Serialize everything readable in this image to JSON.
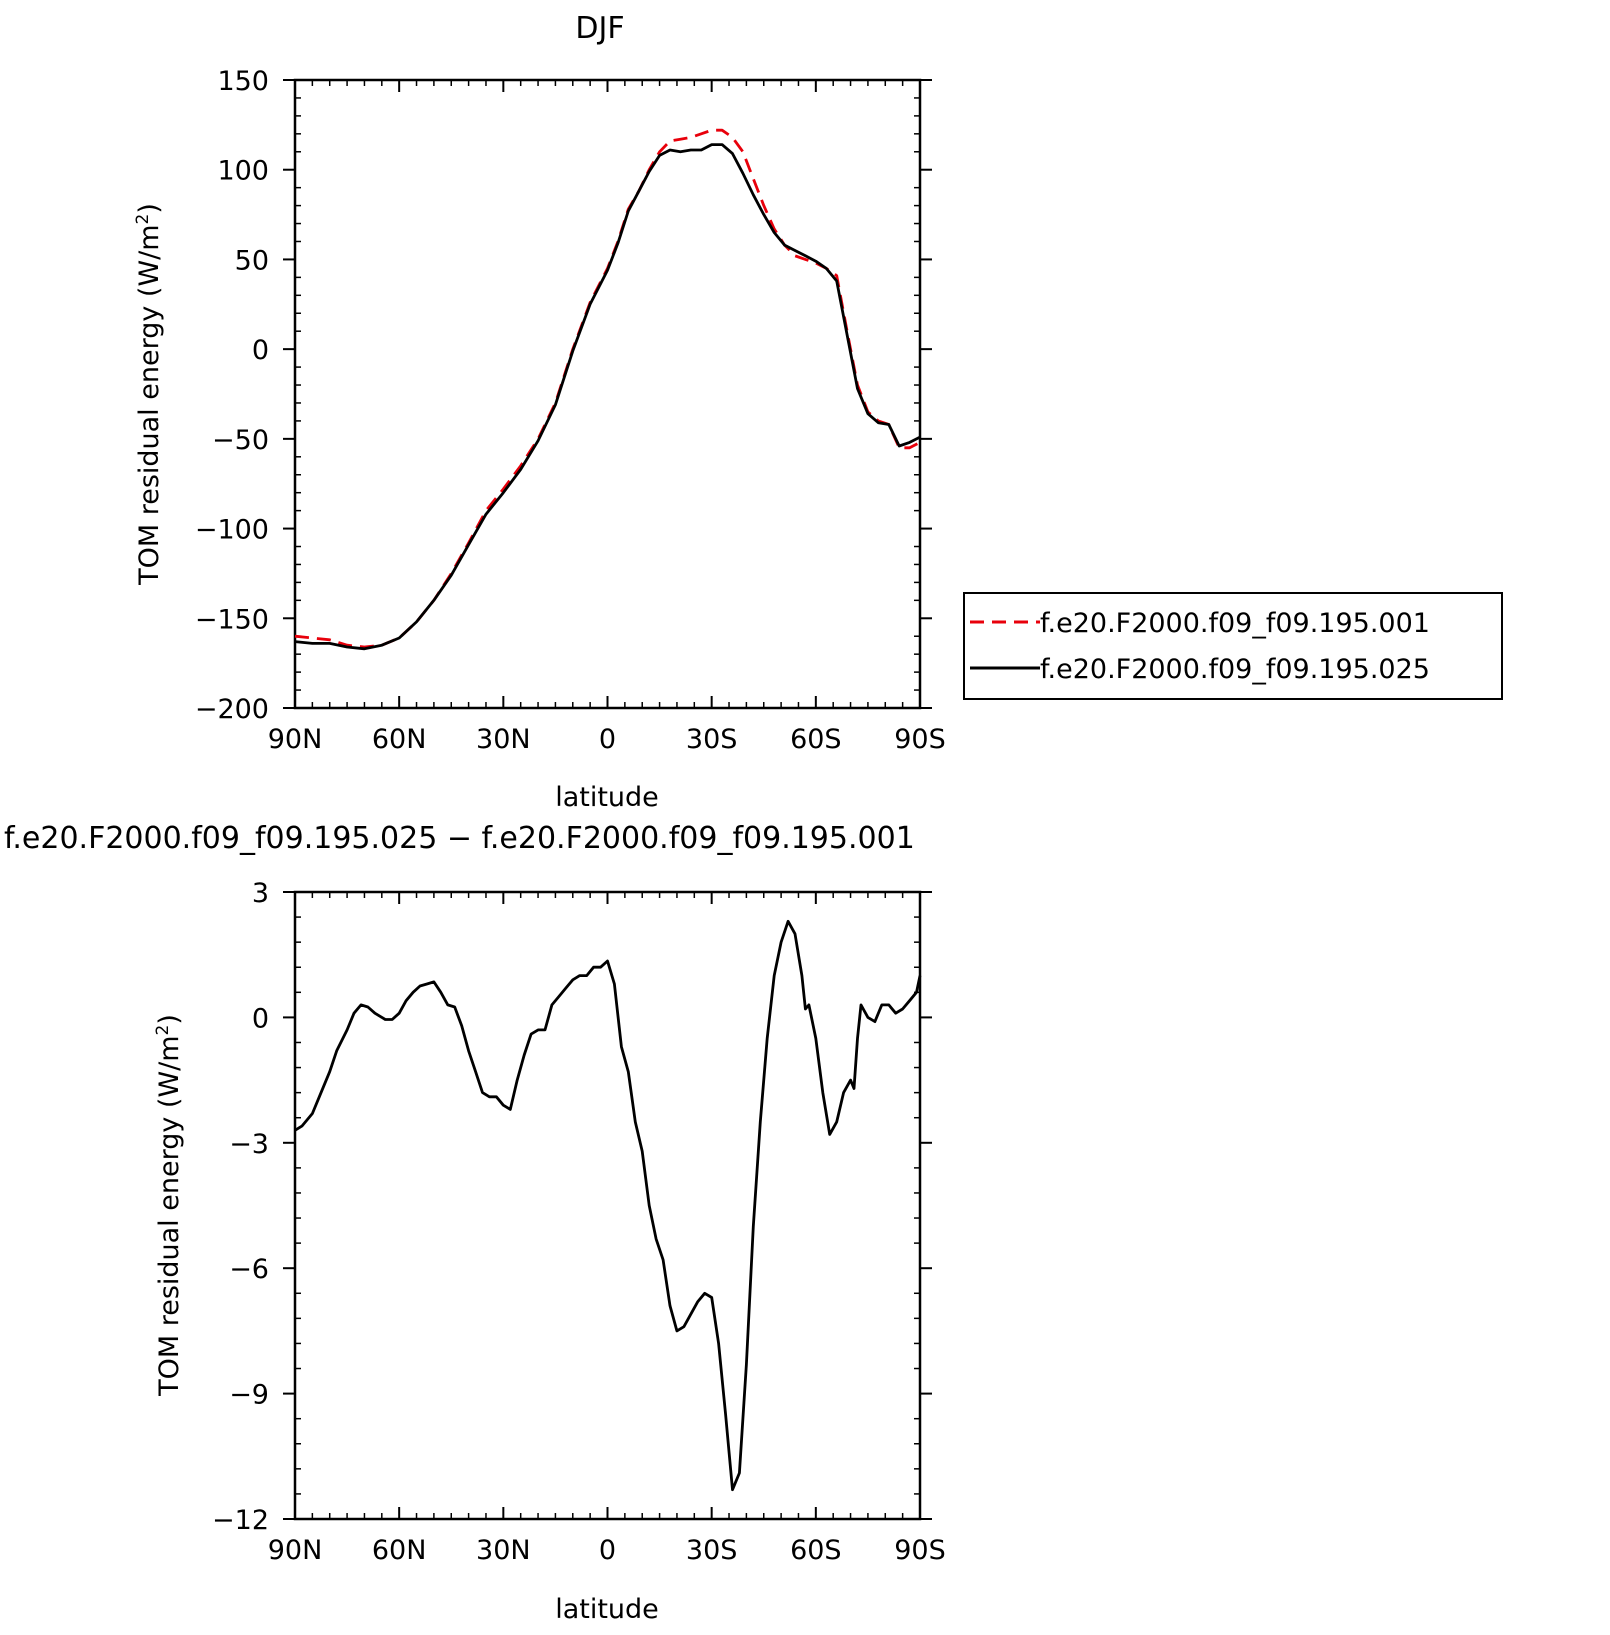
{
  "chart_data": [
    {
      "type": "line",
      "title": "DJF",
      "xlabel": "latitude",
      "ylabel": "TOM residual energy (W/m²)",
      "ylabel_prefix": "TOM residual energy (W/m",
      "ylabel_sup": "2",
      "ylabel_suffix": ")",
      "xlim": [
        -90,
        90
      ],
      "ylim": [
        -200,
        150
      ],
      "xticks": [
        {
          "value": -90,
          "label": "90N"
        },
        {
          "value": -60,
          "label": "60N"
        },
        {
          "value": -30,
          "label": "30N"
        },
        {
          "value": 0,
          "label": "0"
        },
        {
          "value": 30,
          "label": "30S"
        },
        {
          "value": 60,
          "label": "60S"
        },
        {
          "value": 90,
          "label": "90S"
        }
      ],
      "yticks": [
        {
          "value": 150,
          "label": "150"
        },
        {
          "value": 100,
          "label": "100"
        },
        {
          "value": 50,
          "label": "50"
        },
        {
          "value": 0,
          "label": "0"
        },
        {
          "value": -50,
          "label": "−50"
        },
        {
          "value": -100,
          "label": "−100"
        },
        {
          "value": -150,
          "label": "−150"
        },
        {
          "value": -200,
          "label": "−200"
        }
      ],
      "legend_position": "right",
      "series": [
        {
          "name": "f.e20.F2000.f09_f09.195.001",
          "color": "#e8000b",
          "dash": "dashed",
          "points": [
            [
              -90,
              -160
            ],
            [
              -85,
              -161
            ],
            [
              -80,
              -162
            ],
            [
              -75,
              -165
            ],
            [
              -70,
              -166
            ],
            [
              -65,
              -165
            ],
            [
              -60,
              -161
            ],
            [
              -55,
              -152
            ],
            [
              -50,
              -140
            ],
            [
              -45,
              -125
            ],
            [
              -40,
              -108
            ],
            [
              -35,
              -90
            ],
            [
              -30,
              -78
            ],
            [
              -25,
              -65
            ],
            [
              -20,
              -50
            ],
            [
              -15,
              -30
            ],
            [
              -10,
              0
            ],
            [
              -5,
              26
            ],
            [
              0,
              45
            ],
            [
              3,
              60
            ],
            [
              6,
              78
            ],
            [
              9,
              88
            ],
            [
              12,
              100
            ],
            [
              15,
              110
            ],
            [
              18,
              116
            ],
            [
              21,
              117
            ],
            [
              24,
              118
            ],
            [
              27,
              120
            ],
            [
              30,
              122
            ],
            [
              33,
              122
            ],
            [
              36,
              118
            ],
            [
              39,
              110
            ],
            [
              42,
              95
            ],
            [
              45,
              80
            ],
            [
              48,
              67
            ],
            [
              51,
              58
            ],
            [
              54,
              52
            ],
            [
              57,
              50
            ],
            [
              60,
              48
            ],
            [
              63,
              45
            ],
            [
              66,
              41
            ],
            [
              69,
              10
            ],
            [
              72,
              -20
            ],
            [
              75,
              -35
            ],
            [
              78,
              -40
            ],
            [
              81,
              -42
            ],
            [
              84,
              -55
            ],
            [
              87,
              -55
            ],
            [
              90,
              -52
            ]
          ]
        },
        {
          "name": "f.e20.F2000.f09_f09.195.025",
          "color": "#000000",
          "dash": "solid",
          "points": [
            [
              -90,
              -163
            ],
            [
              -85,
              -164
            ],
            [
              -80,
              -164
            ],
            [
              -75,
              -166
            ],
            [
              -70,
              -167
            ],
            [
              -65,
              -165
            ],
            [
              -60,
              -161
            ],
            [
              -55,
              -152
            ],
            [
              -50,
              -140
            ],
            [
              -45,
              -126
            ],
            [
              -40,
              -109
            ],
            [
              -35,
              -92
            ],
            [
              -30,
              -80
            ],
            [
              -25,
              -67
            ],
            [
              -20,
              -51
            ],
            [
              -15,
              -31
            ],
            [
              -10,
              -1
            ],
            [
              -5,
              25
            ],
            [
              0,
              44
            ],
            [
              3,
              59
            ],
            [
              6,
              77
            ],
            [
              9,
              88
            ],
            [
              12,
              99
            ],
            [
              15,
              108
            ],
            [
              18,
              111
            ],
            [
              21,
              110
            ],
            [
              24,
              111
            ],
            [
              27,
              111
            ],
            [
              30,
              114
            ],
            [
              33,
              114
            ],
            [
              36,
              109
            ],
            [
              39,
              98
            ],
            [
              42,
              86
            ],
            [
              45,
              75
            ],
            [
              48,
              65
            ],
            [
              51,
              58
            ],
            [
              54,
              55
            ],
            [
              57,
              52
            ],
            [
              60,
              49
            ],
            [
              63,
              45
            ],
            [
              66,
              38
            ],
            [
              69,
              8
            ],
            [
              72,
              -22
            ],
            [
              75,
              -36
            ],
            [
              78,
              -41
            ],
            [
              81,
              -42
            ],
            [
              84,
              -54
            ],
            [
              87,
              -52
            ],
            [
              90,
              -49
            ]
          ]
        }
      ]
    },
    {
      "type": "line",
      "title": "f.e20.F2000.f09_f09.195.025 − f.e20.F2000.f09_f09.195.001",
      "xlabel": "latitude",
      "ylabel": "TOM residual energy (W/m²)",
      "ylabel_prefix": "TOM residual energy (W/m",
      "ylabel_sup": "2",
      "ylabel_suffix": ")",
      "xlim": [
        -90,
        90
      ],
      "ylim": [
        -12,
        3
      ],
      "xticks": [
        {
          "value": -90,
          "label": "90N"
        },
        {
          "value": -60,
          "label": "60N"
        },
        {
          "value": -30,
          "label": "30N"
        },
        {
          "value": 0,
          "label": "0"
        },
        {
          "value": 30,
          "label": "30S"
        },
        {
          "value": 60,
          "label": "60S"
        },
        {
          "value": 90,
          "label": "90S"
        }
      ],
      "yticks": [
        {
          "value": 3,
          "label": "3"
        },
        {
          "value": 0,
          "label": "0"
        },
        {
          "value": -3,
          "label": "−3"
        },
        {
          "value": -6,
          "label": "−6"
        },
        {
          "value": -9,
          "label": "−9"
        },
        {
          "value": -12,
          "label": "−12"
        }
      ],
      "series": [
        {
          "name": "",
          "color": "#000000",
          "dash": "solid",
          "points": [
            [
              -90,
              -2.7
            ],
            [
              -88,
              -2.6
            ],
            [
              -85,
              -2.3
            ],
            [
              -83,
              -1.9
            ],
            [
              -80,
              -1.3
            ],
            [
              -78,
              -0.8
            ],
            [
              -75,
              -0.3
            ],
            [
              -73,
              0.1
            ],
            [
              -71,
              0.3
            ],
            [
              -69,
              0.25
            ],
            [
              -67,
              0.1
            ],
            [
              -64,
              -0.05
            ],
            [
              -62,
              -0.05
            ],
            [
              -60,
              0.1
            ],
            [
              -58,
              0.4
            ],
            [
              -56,
              0.6
            ],
            [
              -54,
              0.75
            ],
            [
              -52,
              0.8
            ],
            [
              -50,
              0.85
            ],
            [
              -48,
              0.6
            ],
            [
              -46,
              0.3
            ],
            [
              -44,
              0.25
            ],
            [
              -42,
              -0.2
            ],
            [
              -40,
              -0.8
            ],
            [
              -38,
              -1.3
            ],
            [
              -36,
              -1.8
            ],
            [
              -34,
              -1.9
            ],
            [
              -32,
              -1.9
            ],
            [
              -30,
              -2.1
            ],
            [
              -28,
              -2.2
            ],
            [
              -26,
              -1.5
            ],
            [
              -24,
              -0.9
            ],
            [
              -22,
              -0.4
            ],
            [
              -20,
              -0.3
            ],
            [
              -18,
              -0.3
            ],
            [
              -16,
              0.3
            ],
            [
              -14,
              0.5
            ],
            [
              -12,
              0.7
            ],
            [
              -10,
              0.9
            ],
            [
              -8,
              1.0
            ],
            [
              -6,
              1.0
            ],
            [
              -4,
              1.2
            ],
            [
              -2,
              1.2
            ],
            [
              0,
              1.35
            ],
            [
              2,
              0.8
            ],
            [
              4,
              -0.7
            ],
            [
              6,
              -1.3
            ],
            [
              8,
              -2.5
            ],
            [
              10,
              -3.2
            ],
            [
              12,
              -4.5
            ],
            [
              14,
              -5.3
            ],
            [
              16,
              -5.8
            ],
            [
              18,
              -6.9
            ],
            [
              20,
              -7.5
            ],
            [
              22,
              -7.4
            ],
            [
              24,
              -7.1
            ],
            [
              26,
              -6.8
            ],
            [
              28,
              -6.6
            ],
            [
              30,
              -6.7
            ],
            [
              32,
              -7.8
            ],
            [
              34,
              -9.5
            ],
            [
              36,
              -11.3
            ],
            [
              38,
              -10.9
            ],
            [
              40,
              -8.3
            ],
            [
              42,
              -5.0
            ],
            [
              44,
              -2.5
            ],
            [
              46,
              -0.5
            ],
            [
              48,
              1.0
            ],
            [
              50,
              1.8
            ],
            [
              52,
              2.3
            ],
            [
              54,
              2.0
            ],
            [
              56,
              1.0
            ],
            [
              57,
              0.2
            ],
            [
              58,
              0.3
            ],
            [
              60,
              -0.5
            ],
            [
              62,
              -1.8
            ],
            [
              64,
              -2.8
            ],
            [
              66,
              -2.5
            ],
            [
              68,
              -1.8
            ],
            [
              70,
              -1.5
            ],
            [
              71,
              -1.7
            ],
            [
              72,
              -0.5
            ],
            [
              73,
              0.3
            ],
            [
              75,
              0.0
            ],
            [
              77,
              -0.1
            ],
            [
              79,
              0.3
            ],
            [
              81,
              0.3
            ],
            [
              83,
              0.1
            ],
            [
              85,
              0.2
            ],
            [
              87,
              0.4
            ],
            [
              89,
              0.6
            ],
            [
              90,
              1.0
            ]
          ]
        }
      ]
    }
  ]
}
